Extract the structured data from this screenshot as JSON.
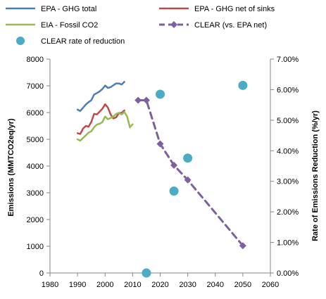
{
  "chart_data": {
    "type": "line",
    "title": "",
    "xlabel": "",
    "ylabel": "Emissions (MMTCO2eq/yr)",
    "y2label": "Rate of Emissions Reduction (%/yr)",
    "xlim": [
      1980,
      2060
    ],
    "ylim": [
      0,
      8000
    ],
    "y2lim": [
      0,
      0.07
    ],
    "x_ticks": [
      "1980",
      "1990",
      "2000",
      "2010",
      "2020",
      "2030",
      "2040",
      "2050",
      "2060"
    ],
    "y_ticks": [
      "0",
      "1000",
      "2000",
      "3000",
      "4000",
      "5000",
      "6000",
      "7000",
      "8000"
    ],
    "y2_ticks": [
      "0.00%",
      "1.00%",
      "2.00%",
      "3.00%",
      "4.00%",
      "5.00%",
      "6.00%",
      "7.00%"
    ],
    "grid": false,
    "legend_position": "top",
    "series": [
      {
        "name": "EPA - GHG total",
        "color": "#4a7ebb",
        "style": "solid",
        "axis": "left",
        "x": [
          1990,
          1991,
          1992,
          1993,
          1994,
          1995,
          1996,
          1997,
          1998,
          1999,
          2000,
          2001,
          2002,
          2003,
          2004,
          2005,
          2006,
          2007
        ],
        "y": [
          6110,
          6060,
          6180,
          6300,
          6390,
          6460,
          6670,
          6730,
          6790,
          6880,
          7010,
          6920,
          6950,
          7020,
          7090,
          7090,
          7050,
          7150
        ]
      },
      {
        "name": "EPA - GHG net of sinks",
        "color": "#be4b48",
        "style": "solid",
        "axis": "left",
        "x": [
          1990,
          1991,
          1992,
          1993,
          1994,
          1995,
          1996,
          1997,
          1998,
          1999,
          2000,
          2001,
          2002,
          2003,
          2004,
          2005,
          2006,
          2007
        ],
        "y": [
          5230,
          5200,
          5400,
          5500,
          5470,
          5650,
          5950,
          5930,
          6030,
          6140,
          6310,
          6190,
          5930,
          5780,
          5820,
          5980,
          5990,
          6080
        ]
      },
      {
        "name": "EIA - Fossil CO2",
        "color": "#98b954",
        "style": "solid",
        "axis": "left",
        "x": [
          1990,
          1991,
          1992,
          1993,
          1994,
          1995,
          1996,
          1997,
          1998,
          1999,
          2000,
          2001,
          2002,
          2003,
          2004,
          2005,
          2006,
          2007,
          2008,
          2009,
          2010
        ],
        "y": [
          5000,
          4950,
          5050,
          5150,
          5250,
          5300,
          5450,
          5550,
          5580,
          5640,
          5850,
          5750,
          5800,
          5850,
          5950,
          5990,
          5930,
          6020,
          5850,
          5450,
          5560
        ]
      },
      {
        "name": "CLEAR (vs. EPA net)",
        "color": "#7d60a0",
        "style": "dashed",
        "marker": "diamond",
        "axis": "left",
        "x": [
          2012,
          2015,
          2020,
          2025,
          2030,
          2050
        ],
        "y": [
          6460,
          6460,
          4830,
          4030,
          3480,
          1020
        ]
      },
      {
        "name": "CLEAR rate of reduction",
        "color": "#4bacc6",
        "style": "markers",
        "marker": "circle",
        "axis": "right",
        "x": [
          2015,
          2020,
          2025,
          2030,
          2050
        ],
        "y": [
          0.0,
          0.0585,
          0.0268,
          0.0376,
          0.0614
        ]
      }
    ]
  }
}
